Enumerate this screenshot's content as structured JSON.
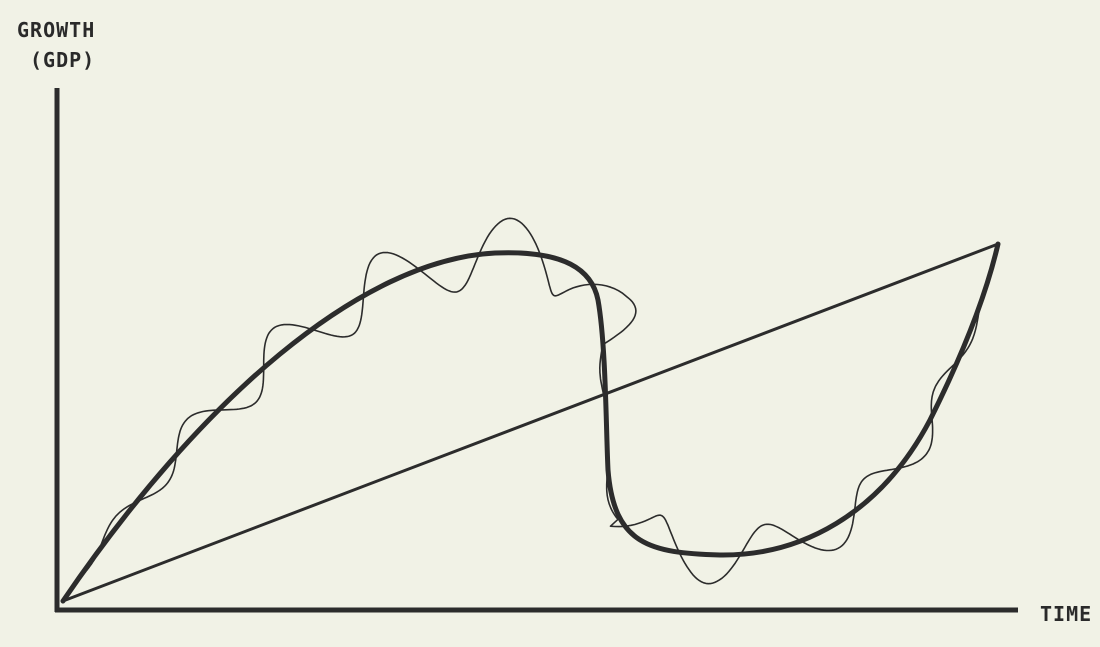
{
  "diagram": {
    "y_axis_label_line1": "GROWTH",
    "y_axis_label_line2": "(GDP)",
    "x_axis_label": "TIME"
  },
  "colors": {
    "background": "#f1f2e6",
    "ink": "#2c2c2c"
  }
}
